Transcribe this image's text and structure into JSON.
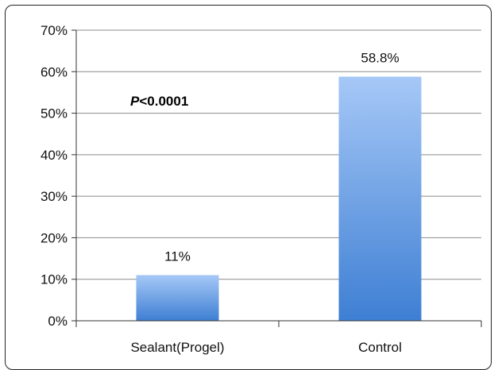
{
  "chart_data": {
    "type": "bar",
    "categories": [
      "Sealant(Progel)",
      "Control"
    ],
    "values": [
      11,
      58.8
    ],
    "data_labels": [
      "11%",
      "58.8%"
    ],
    "ylim": [
      0,
      70
    ],
    "yticks": [
      0,
      10,
      20,
      30,
      40,
      50,
      60,
      70
    ],
    "ytick_labels": [
      "0%",
      "10%",
      "20%",
      "30%",
      "40%",
      "50%",
      "60%",
      "70%"
    ],
    "grid": true,
    "annotation": {
      "italic_part": "P",
      "rest": "<0.0001"
    },
    "colors": {
      "bar_top": "#a6c8f7",
      "bar_bottom": "#3e7fd3",
      "grid": "#8c8c8c",
      "axis": "#333333"
    }
  }
}
